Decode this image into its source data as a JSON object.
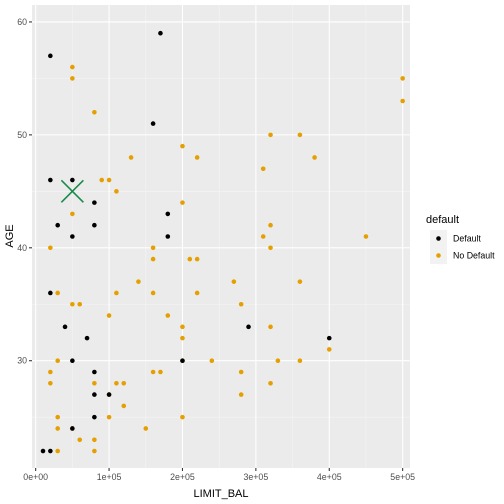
{
  "chart_data": {
    "type": "scatter",
    "xlabel": "LIMIT_BAL",
    "ylabel": "AGE",
    "xlim": [
      -5000,
      510000
    ],
    "ylim": [
      20.5,
      61.5
    ],
    "x_ticks": [
      0,
      100000,
      200000,
      300000,
      400000,
      500000
    ],
    "x_tick_labels": [
      "0e+00",
      "1e+05",
      "2e+05",
      "3e+05",
      "4e+05",
      "5e+05"
    ],
    "y_ticks": [
      30,
      40,
      50,
      60
    ],
    "y_tick_labels": [
      "30",
      "40",
      "50",
      "60"
    ],
    "grid": true,
    "panel_background": "#ebebeb",
    "legend": {
      "title": "default",
      "position": "right",
      "entries": [
        {
          "label": "Default",
          "color": "#000000"
        },
        {
          "label": "No Default",
          "color": "#E69F00"
        }
      ]
    },
    "series": [
      {
        "name": "Default",
        "color": "#000000",
        "points": [
          [
            20000,
            57
          ],
          [
            170000,
            59
          ],
          [
            160000,
            51
          ],
          [
            20000,
            46
          ],
          [
            50000,
            46
          ],
          [
            80000,
            44
          ],
          [
            180000,
            43
          ],
          [
            30000,
            42
          ],
          [
            80000,
            42
          ],
          [
            50000,
            41
          ],
          [
            180000,
            41
          ],
          [
            20000,
            36
          ],
          [
            40000,
            33
          ],
          [
            290000,
            33
          ],
          [
            70000,
            32
          ],
          [
            400000,
            32
          ],
          [
            50000,
            30
          ],
          [
            200000,
            30
          ],
          [
            80000,
            29
          ],
          [
            80000,
            27
          ],
          [
            100000,
            27
          ],
          [
            80000,
            25
          ],
          [
            50000,
            24
          ],
          [
            10000,
            22
          ],
          [
            20000,
            22
          ]
        ]
      },
      {
        "name": "No Default",
        "color": "#E69F00",
        "points": [
          [
            50000,
            56
          ],
          [
            50000,
            55
          ],
          [
            500000,
            55
          ],
          [
            500000,
            53
          ],
          [
            80000,
            52
          ],
          [
            320000,
            50
          ],
          [
            360000,
            50
          ],
          [
            200000,
            49
          ],
          [
            130000,
            48
          ],
          [
            220000,
            48
          ],
          [
            380000,
            48
          ],
          [
            310000,
            47
          ],
          [
            90000,
            46
          ],
          [
            100000,
            46
          ],
          [
            110000,
            45
          ],
          [
            50000,
            43
          ],
          [
            200000,
            44
          ],
          [
            320000,
            42
          ],
          [
            310000,
            41
          ],
          [
            450000,
            41
          ],
          [
            20000,
            40
          ],
          [
            160000,
            40
          ],
          [
            320000,
            40
          ],
          [
            210000,
            39
          ],
          [
            220000,
            39
          ],
          [
            160000,
            39
          ],
          [
            270000,
            37
          ],
          [
            360000,
            37
          ],
          [
            140000,
            37
          ],
          [
            30000,
            36
          ],
          [
            110000,
            36
          ],
          [
            160000,
            36
          ],
          [
            220000,
            36
          ],
          [
            50000,
            35
          ],
          [
            60000,
            35
          ],
          [
            280000,
            35
          ],
          [
            100000,
            34
          ],
          [
            180000,
            34
          ],
          [
            200000,
            33
          ],
          [
            320000,
            33
          ],
          [
            200000,
            32
          ],
          [
            400000,
            31
          ],
          [
            30000,
            30
          ],
          [
            200000,
            30
          ],
          [
            240000,
            30
          ],
          [
            330000,
            30
          ],
          [
            360000,
            30
          ],
          [
            20000,
            29
          ],
          [
            160000,
            29
          ],
          [
            170000,
            29
          ],
          [
            280000,
            29
          ],
          [
            20000,
            28
          ],
          [
            80000,
            28
          ],
          [
            110000,
            28
          ],
          [
            120000,
            28
          ],
          [
            320000,
            28
          ],
          [
            100000,
            27
          ],
          [
            280000,
            27
          ],
          [
            120000,
            26
          ],
          [
            30000,
            25
          ],
          [
            100000,
            25
          ],
          [
            200000,
            25
          ],
          [
            30000,
            24
          ],
          [
            50000,
            24
          ],
          [
            150000,
            24
          ],
          [
            60000,
            23
          ],
          [
            80000,
            23
          ],
          [
            30000,
            22
          ],
          [
            80000,
            22
          ]
        ]
      }
    ],
    "annotations": [
      {
        "type": "cross-marker",
        "color": "#1a8a4a",
        "x": 50000,
        "y": 45
      }
    ]
  }
}
